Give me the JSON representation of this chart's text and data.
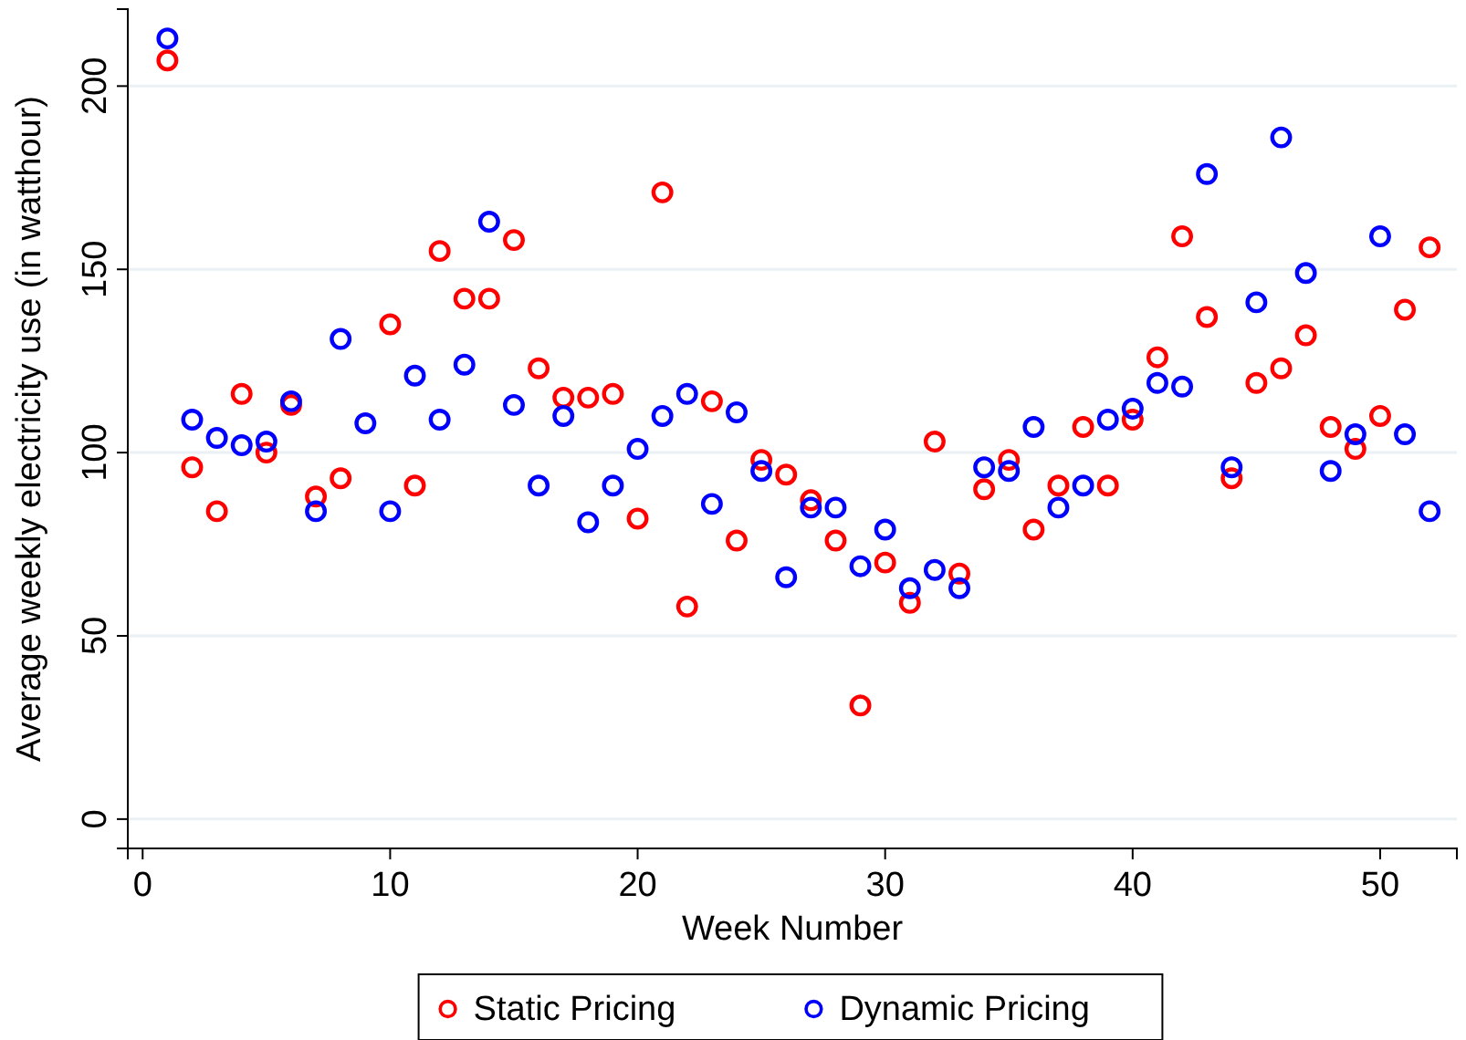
{
  "chart_data": {
    "type": "scatter",
    "xlabel": "Week Number",
    "ylabel": "Average weekly electricity use (in watthour)",
    "x": [
      1,
      2,
      3,
      4,
      5,
      6,
      7,
      8,
      9,
      10,
      11,
      12,
      13,
      14,
      15,
      16,
      17,
      18,
      19,
      20,
      21,
      22,
      23,
      24,
      25,
      26,
      27,
      28,
      29,
      30,
      31,
      32,
      33,
      34,
      35,
      36,
      37,
      38,
      39,
      40,
      41,
      42,
      43,
      44,
      45,
      46,
      47,
      48,
      49,
      50,
      51,
      52
    ],
    "series": [
      {
        "name": "Static Pricing",
        "color": "#ff0000",
        "values": [
          207,
          96,
          84,
          116,
          100,
          113,
          88,
          93,
          null,
          135,
          91,
          155,
          142,
          142,
          158,
          123,
          115,
          115,
          116,
          82,
          171,
          58,
          114,
          76,
          98,
          94,
          87,
          76,
          31,
          70,
          59,
          103,
          67,
          90,
          98,
          79,
          91,
          107,
          91,
          109,
          126,
          159,
          137,
          93,
          119,
          123,
          132,
          107,
          101,
          110,
          139,
          156
        ]
      },
      {
        "name": "Dynamic Pricing",
        "color": "#0000ff",
        "values": [
          213,
          109,
          104,
          102,
          103,
          114,
          84,
          131,
          108,
          84,
          121,
          109,
          124,
          163,
          113,
          91,
          110,
          81,
          91,
          101,
          110,
          116,
          86,
          111,
          95,
          66,
          85,
          85,
          69,
          79,
          63,
          68,
          63,
          96,
          95,
          107,
          85,
          91,
          109,
          112,
          119,
          118,
          176,
          96,
          141,
          186,
          149,
          95,
          105,
          159,
          105,
          84
        ]
      }
    ],
    "xlim": [
      -0.6,
      53.1
    ],
    "ylim": [
      -8,
      221
    ],
    "xticks": [
      0,
      10,
      20,
      30,
      40,
      50
    ],
    "yticks": [
      0,
      50,
      100,
      150,
      200
    ],
    "grid": "y",
    "legend": "bottom",
    "marker": "circle"
  }
}
